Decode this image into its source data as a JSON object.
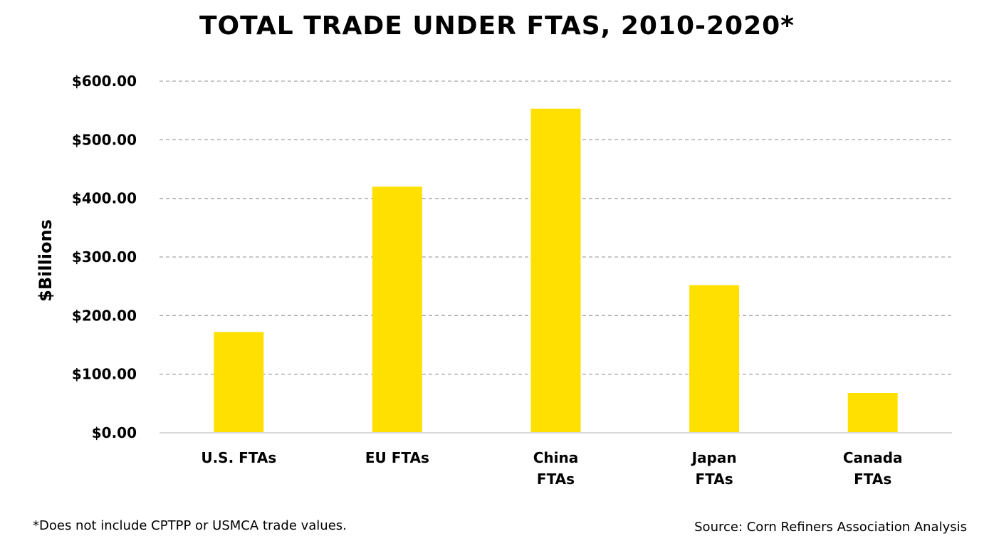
{
  "chart_data": {
    "type": "bar",
    "title": "TOTAL TRADE UNDER FTAS, 2010-2020*",
    "ylabel": "$Billions",
    "xlabel": "",
    "categories": [
      [
        "U.S. FTAs"
      ],
      [
        "EU FTAs"
      ],
      [
        "China",
        "FTAs"
      ],
      [
        "Japan",
        "FTAs"
      ],
      [
        "Canada",
        "FTAs"
      ]
    ],
    "values": [
      172,
      420,
      553,
      252,
      68
    ],
    "ylim": [
      0,
      600
    ],
    "yticks": [
      0,
      100,
      200,
      300,
      400,
      500,
      600
    ],
    "ytick_labels": [
      "$0.00",
      "$100.00",
      "$200.00",
      "$300.00",
      "$400.00",
      "$500.00",
      "$600.00"
    ],
    "grid": true,
    "bar_color": "#FFE000",
    "grid_color": "#a6a6a6",
    "axis_color": "#d9d9d9"
  },
  "footnote": "*Does not include CPTPP or USMCA trade values.",
  "source": "Source: Corn Refiners Association Analysis"
}
